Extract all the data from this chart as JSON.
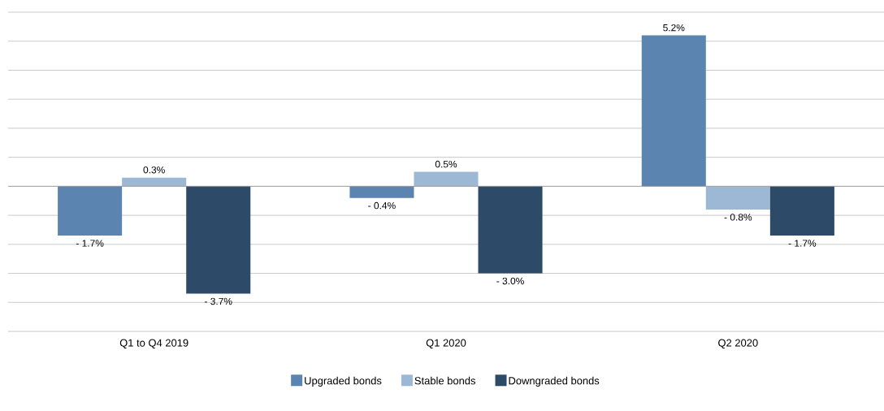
{
  "chart_data": {
    "type": "bar",
    "categories": [
      "Q1 to Q4 2019",
      "Q1 2020",
      "Q2 2020"
    ],
    "series": [
      {
        "name": "Upgraded bonds",
        "color": "#5b84b1",
        "values": [
          -1.7,
          -0.4,
          5.2
        ],
        "value_labels": [
          "- 1.7%",
          "- 0.4%",
          "5.2%"
        ]
      },
      {
        "name": "Stable bonds",
        "color": "#9db8d5",
        "values": [
          0.3,
          0.5,
          -0.8
        ],
        "value_labels": [
          "0.3%",
          "0.5%",
          "- 0.8%"
        ]
      },
      {
        "name": "Downgraded bonds",
        "color": "#2d4a69",
        "values": [
          -3.7,
          -3.0,
          -1.7
        ],
        "value_labels": [
          "- 3.7%",
          "- 3.0%",
          "- 1.7%"
        ]
      }
    ],
    "ylim": [
      -5,
      6
    ],
    "yticks": [
      {
        "value": -5,
        "label": null
      },
      {
        "value": -4,
        "label": null
      },
      {
        "value": -3,
        "label": null
      },
      {
        "value": -2,
        "label": null
      },
      {
        "value": -1,
        "label": null
      },
      {
        "value": 0,
        "label": null
      },
      {
        "value": 1,
        "label": null
      },
      {
        "value": 2,
        "label": null
      },
      {
        "value": 3,
        "label": null
      },
      {
        "value": 4,
        "label": null
      },
      {
        "value": 5,
        "label": null
      },
      {
        "value": 6,
        "label": null
      }
    ],
    "grid": "y",
    "legend": "bottom",
    "tick_labels": "x"
  }
}
